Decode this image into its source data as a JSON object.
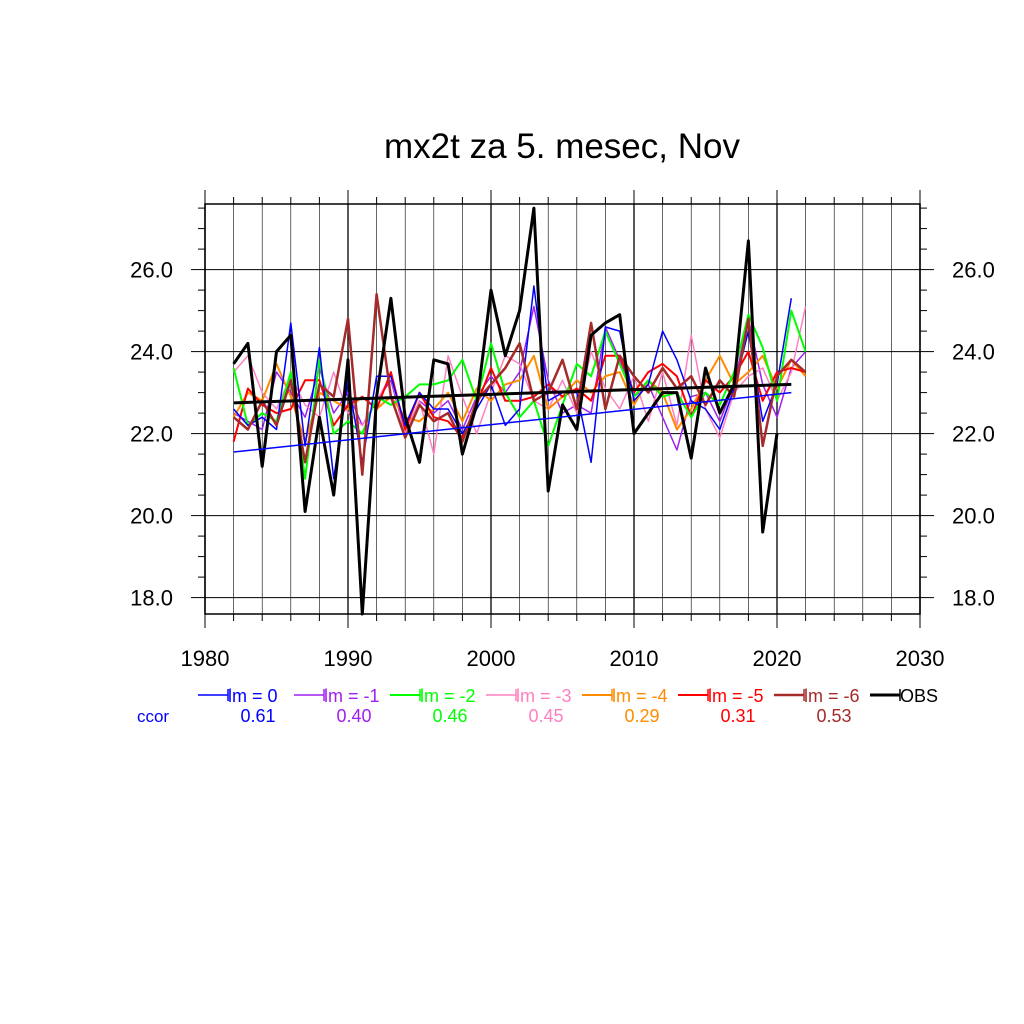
{
  "chart_data": {
    "type": "line",
    "title": "mx2t za 5. mesec, Nov",
    "xlabel": "",
    "ylabel": "",
    "xlim": [
      1980,
      2030
    ],
    "ylim": [
      17.6,
      27.6
    ],
    "xticks": [
      1980,
      1990,
      2000,
      2010,
      2020,
      2030
    ],
    "xtick_labels": [
      "1980",
      "1990",
      "2000",
      "2010",
      "2020",
      "2030"
    ],
    "yticks": [
      18,
      20,
      22,
      24,
      26
    ],
    "ytick_labels": [
      "18.0",
      "20.0",
      "22.0",
      "24.0",
      "26.0"
    ],
    "grid": true,
    "legend_position": "bottom",
    "ccor_label": "ccor",
    "series": [
      {
        "name": "lm = 0",
        "color": "#0000ff",
        "width": 1.5,
        "ccor": "0.61",
        "trend": [
          21.55,
          23.0
        ],
        "trend_x": [
          1982,
          2021
        ],
        "x": [
          1982,
          1983,
          1984,
          1985,
          1986,
          1987,
          1988,
          1989,
          1990,
          1991,
          1992,
          1993,
          1994,
          1995,
          1996,
          1997,
          1998,
          1999,
          2000,
          2001,
          2002,
          2003,
          2004,
          2005,
          2006,
          2007,
          2008,
          2009,
          2010,
          2011,
          2012,
          2013,
          2014,
          2015,
          2016,
          2017,
          2018,
          2019,
          2020,
          2021
        ],
        "values": [
          22.6,
          22.2,
          22.4,
          22.1,
          24.7,
          21.7,
          24.1,
          20.9,
          23.3,
          21.3,
          23.4,
          23.4,
          22.2,
          23.0,
          22.6,
          22.6,
          22.0,
          22.6,
          23.2,
          22.2,
          22.6,
          25.6,
          22.8,
          23.0,
          23.0,
          21.3,
          24.6,
          24.5,
          22.8,
          23.2,
          24.5,
          23.8,
          22.8,
          22.6,
          22.1,
          23.1,
          24.5,
          22.3,
          23.2,
          25.3
        ]
      },
      {
        "name": "lm = -1",
        "color": "#a020f0",
        "width": 1.5,
        "ccor": "0.40",
        "x": [
          1982,
          1983,
          1984,
          1985,
          1986,
          1987,
          1988,
          1989,
          1990,
          1991,
          1992,
          1993,
          1994,
          1995,
          1996,
          1997,
          1998,
          1999,
          2000,
          2001,
          2002,
          2003,
          2004,
          2005,
          2006,
          2007,
          2008,
          2009,
          2010,
          2011,
          2012,
          2013,
          2014,
          2015,
          2016,
          2017,
          2018,
          2019,
          2020,
          2021,
          2022
        ],
        "values": [
          22.5,
          22.3,
          22.1,
          23.5,
          23.0,
          22.4,
          23.6,
          22.5,
          23.0,
          22.2,
          22.8,
          23.3,
          22.0,
          22.8,
          22.5,
          22.8,
          22.1,
          22.9,
          23.4,
          23.0,
          23.5,
          25.1,
          23.3,
          22.5,
          22.7,
          22.5,
          24.6,
          23.8,
          22.9,
          23.2,
          22.4,
          21.6,
          22.9,
          23.0,
          22.3,
          23.2,
          24.8,
          23.2,
          22.4,
          23.6,
          24.0
        ]
      },
      {
        "name": "lm = -2",
        "color": "#00ff00",
        "width": 2,
        "ccor": "0.46",
        "x": [
          1982,
          1983,
          1984,
          1985,
          1986,
          1987,
          1988,
          1989,
          1990,
          1991,
          1992,
          1993,
          1994,
          1995,
          1996,
          1997,
          1998,
          1999,
          2000,
          2001,
          2002,
          2003,
          2004,
          2005,
          2006,
          2007,
          2008,
          2009,
          2010,
          2011,
          2012,
          2013,
          2014,
          2015,
          2016,
          2017,
          2018,
          2019,
          2020,
          2021,
          2022
        ],
        "values": [
          23.6,
          22.2,
          22.5,
          22.3,
          23.5,
          20.9,
          23.8,
          22.0,
          22.3,
          22.0,
          22.9,
          22.7,
          22.9,
          23.2,
          23.2,
          23.3,
          23.8,
          22.8,
          24.2,
          23.0,
          22.4,
          22.8,
          21.7,
          22.7,
          23.7,
          23.4,
          24.5,
          23.7,
          22.9,
          23.3,
          22.9,
          23.0,
          22.4,
          23.0,
          22.7,
          23.5,
          24.9,
          24.1,
          22.8,
          25.0,
          24.0
        ]
      },
      {
        "name": "lm = -3",
        "color": "#ff80c0",
        "width": 1.5,
        "ccor": "0.45",
        "x": [
          1982,
          1983,
          1984,
          1985,
          1986,
          1987,
          1988,
          1989,
          1990,
          1991,
          1992,
          1993,
          1994,
          1995,
          1996,
          1997,
          1998,
          1999,
          2000,
          2001,
          2002,
          2003,
          2004,
          2005,
          2006,
          2007,
          2008,
          2009,
          2010,
          2011,
          2012,
          2013,
          2014,
          2015,
          2016,
          2017,
          2018,
          2019,
          2020,
          2021,
          2022
        ],
        "values": [
          23.5,
          23.9,
          23.0,
          22.6,
          23.4,
          22.7,
          22.4,
          23.5,
          22.5,
          22.2,
          22.8,
          23.4,
          22.0,
          22.8,
          21.5,
          23.9,
          22.9,
          22.0,
          23.0,
          23.9,
          23.7,
          22.8,
          22.6,
          23.3,
          22.5,
          24.0,
          23.1,
          22.6,
          23.4,
          22.3,
          23.5,
          22.2,
          24.4,
          22.6,
          21.9,
          23.0,
          23.4,
          23.6,
          22.8,
          23.5,
          25.1
        ]
      },
      {
        "name": "lm = -4",
        "color": "#ff8c00",
        "width": 2,
        "ccor": "0.29",
        "x": [
          1982,
          1983,
          1984,
          1985,
          1986,
          1987,
          1988,
          1989,
          1990,
          1991,
          1992,
          1993,
          1994,
          1995,
          1996,
          1997,
          1998,
          1999,
          2000,
          2001,
          2002,
          2003,
          2004,
          2005,
          2006,
          2007,
          2008,
          2009,
          2010,
          2011,
          2012,
          2013,
          2014,
          2015,
          2016,
          2017,
          2018,
          2019,
          2020,
          2021,
          2022
        ],
        "values": [
          22.4,
          23.0,
          22.8,
          23.7,
          22.9,
          21.8,
          23.0,
          22.8,
          22.6,
          22.9,
          22.6,
          22.9,
          22.4,
          22.3,
          22.6,
          23.0,
          22.3,
          23.1,
          22.8,
          23.2,
          23.3,
          23.9,
          22.6,
          22.9,
          23.3,
          23.0,
          23.4,
          23.5,
          22.7,
          23.3,
          23.0,
          22.1,
          22.6,
          23.3,
          23.9,
          23.2,
          23.5,
          23.9,
          23.1,
          23.8,
          23.4
        ]
      },
      {
        "name": "lm = -5",
        "color": "#ff0000",
        "width": 2,
        "ccor": "0.31",
        "x": [
          1982,
          1983,
          1984,
          1985,
          1986,
          1987,
          1988,
          1989,
          1990,
          1991,
          1992,
          1993,
          1994,
          1995,
          1996,
          1997,
          1998,
          1999,
          2000,
          2001,
          2002,
          2003,
          2004,
          2005,
          2006,
          2007,
          2008,
          2009,
          2010,
          2011,
          2012,
          2013,
          2014,
          2015,
          2016,
          2017,
          2018,
          2019,
          2020,
          2021,
          2022
        ],
        "values": [
          21.8,
          23.1,
          22.7,
          22.5,
          22.6,
          23.3,
          23.3,
          22.2,
          22.7,
          22.9,
          22.6,
          23.5,
          22.1,
          23.0,
          22.4,
          22.3,
          21.9,
          22.7,
          23.6,
          22.8,
          22.8,
          22.9,
          23.2,
          22.9,
          23.1,
          22.8,
          23.9,
          23.9,
          23.0,
          23.5,
          23.7,
          23.4,
          22.4,
          23.3,
          23.0,
          23.4,
          24.0,
          22.8,
          23.5,
          23.6,
          23.5
        ]
      },
      {
        "name": "lm = -6",
        "color": "#a52a2a",
        "width": 2.5,
        "ccor": "0.53",
        "x": [
          1982,
          1983,
          1984,
          1985,
          1986,
          1987,
          1988,
          1989,
          1990,
          1991,
          1992,
          1993,
          1994,
          1995,
          1996,
          1997,
          1998,
          1999,
          2000,
          2001,
          2002,
          2003,
          2004,
          2005,
          2006,
          2007,
          2008,
          2009,
          2010,
          2011,
          2012,
          2013,
          2014,
          2015,
          2016,
          2017,
          2018,
          2019,
          2020,
          2021,
          2022
        ],
        "values": [
          22.4,
          22.1,
          22.8,
          22.2,
          23.3,
          21.3,
          23.2,
          22.9,
          24.8,
          21.0,
          25.4,
          22.9,
          21.9,
          22.7,
          22.3,
          22.5,
          21.8,
          22.8,
          23.2,
          23.6,
          24.2,
          22.8,
          23.0,
          23.8,
          22.6,
          24.7,
          22.6,
          23.9,
          23.4,
          23.0,
          23.6,
          23.1,
          23.4,
          22.7,
          23.3,
          22.9,
          24.8,
          21.7,
          23.4,
          23.8,
          23.5
        ]
      },
      {
        "name": "OBS",
        "color": "#000000",
        "width": 3,
        "trend": [
          22.75,
          23.2
        ],
        "trend_x": [
          1982,
          2021
        ],
        "x": [
          1982,
          1983,
          1984,
          1985,
          1986,
          1987,
          1988,
          1989,
          1990,
          1991,
          1992,
          1993,
          1994,
          1995,
          1996,
          1997,
          1998,
          1999,
          2000,
          2001,
          2002,
          2003,
          2004,
          2005,
          2006,
          2007,
          2008,
          2009,
          2010,
          2011,
          2012,
          2013,
          2014,
          2015,
          2016,
          2017,
          2018,
          2019,
          2020
        ],
        "values": [
          23.7,
          24.2,
          21.2,
          24.0,
          24.4,
          20.1,
          22.4,
          20.5,
          23.8,
          17.6,
          22.9,
          25.3,
          22.4,
          21.3,
          23.8,
          23.7,
          21.5,
          22.7,
          25.5,
          23.9,
          25.0,
          27.5,
          20.6,
          22.7,
          22.1,
          24.4,
          24.7,
          24.9,
          22.0,
          22.5,
          23.0,
          23.0,
          21.4,
          23.6,
          22.5,
          23.2,
          26.7,
          19.6,
          22.0
        ]
      }
    ]
  }
}
